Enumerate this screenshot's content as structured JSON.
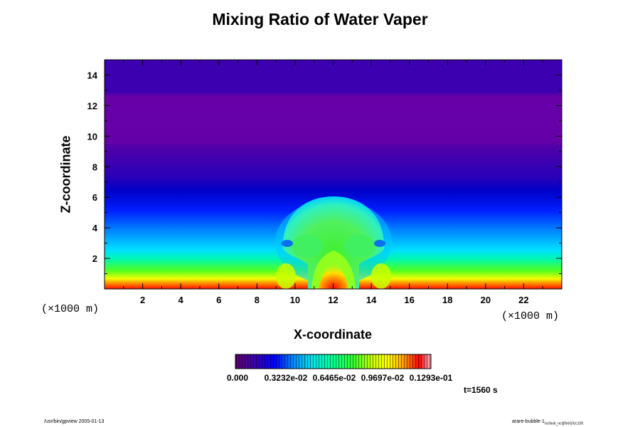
{
  "title": "Mixing Ratio of Water Vaper",
  "chart_data": {
    "type": "heatmap",
    "title": "Mixing Ratio of Water Vaper",
    "xlabel": "X-coordinate",
    "ylabel": "Z-coordinate",
    "x_unit": "(×1000 m)",
    "z_unit": "(×1000 m)",
    "xlim": [
      0,
      24
    ],
    "ylim": [
      0,
      15
    ],
    "x_ticks": [
      2,
      4,
      6,
      8,
      10,
      12,
      14,
      16,
      18,
      20,
      22
    ],
    "y_ticks": [
      2,
      4,
      6,
      8,
      10,
      12,
      14
    ],
    "colormap": [
      "#600070",
      "#3a00b0",
      "#0000ff",
      "#0090ff",
      "#00e8e8",
      "#00ff90",
      "#30ff30",
      "#c8ff00",
      "#ffff00",
      "#ffa000",
      "#ff0000",
      "#ffb8c8"
    ],
    "colorbar_labels": [
      "0.000",
      "0.3232e-02",
      "0.6465e-02",
      "0.9697e-02",
      "0.1293e-01"
    ],
    "bubble": {
      "center_x": 12,
      "top_z": 5.8,
      "width": 5.4
    },
    "annotation": "t=1560 s"
  },
  "footer": {
    "left": "/usr/bin/gpview 2005-01-13",
    "right_main": "arare-bubble-1",
    "right_sub": "nc/lsvb_nc@fxtri(X)c100"
  }
}
